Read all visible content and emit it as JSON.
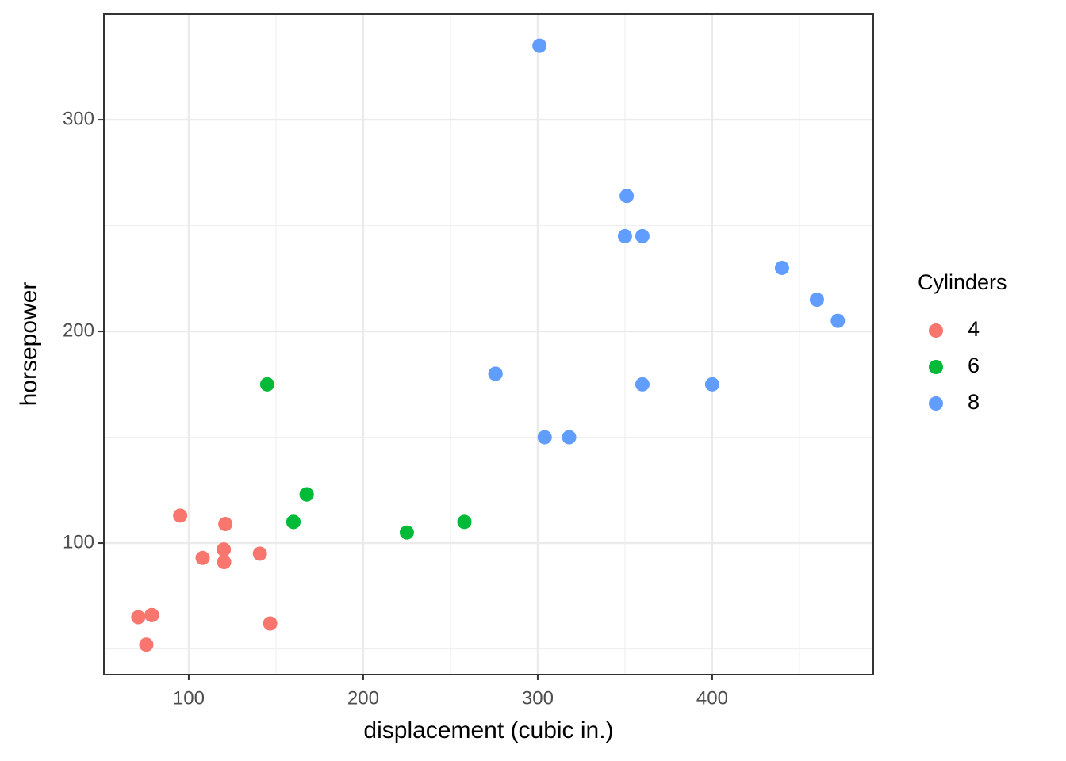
{
  "chart_data": {
    "type": "scatter",
    "x_label": "displacement (cubic in.)",
    "y_label": "horsepower",
    "legend_title": "Cylinders",
    "legend_position": "right",
    "series": [
      {
        "name": "4",
        "color": "#F8766D",
        "x": [
          108,
          146.7,
          140.8,
          78.7,
          75.7,
          71.1,
          120.1,
          79,
          120.3,
          95.1,
          121
        ],
        "values": [
          93,
          62,
          95,
          66,
          52,
          65,
          97,
          66,
          91,
          113,
          109
        ]
      },
      {
        "name": "6",
        "color": "#00BA38",
        "x": [
          160,
          160,
          258,
          225,
          167.6,
          167.6,
          145
        ],
        "values": [
          110,
          110,
          110,
          105,
          123,
          123,
          175
        ]
      },
      {
        "name": "8",
        "color": "#619CFF",
        "x": [
          360,
          360,
          275.8,
          275.8,
          275.8,
          472,
          460,
          440,
          318,
          304,
          350,
          400,
          351,
          301
        ],
        "values": [
          175,
          245,
          180,
          180,
          180,
          205,
          215,
          230,
          150,
          150,
          245,
          175,
          264,
          335
        ]
      }
    ],
    "xlim": [
      51.4,
      492.3
    ],
    "ylim": [
      37.85,
      349.85
    ],
    "xticks": [
      100,
      200,
      300,
      400
    ],
    "yticks": [
      100,
      200,
      300
    ],
    "xminor": [
      150,
      250,
      350,
      450
    ],
    "yminor": [
      50,
      150,
      250
    ],
    "grid": true
  }
}
